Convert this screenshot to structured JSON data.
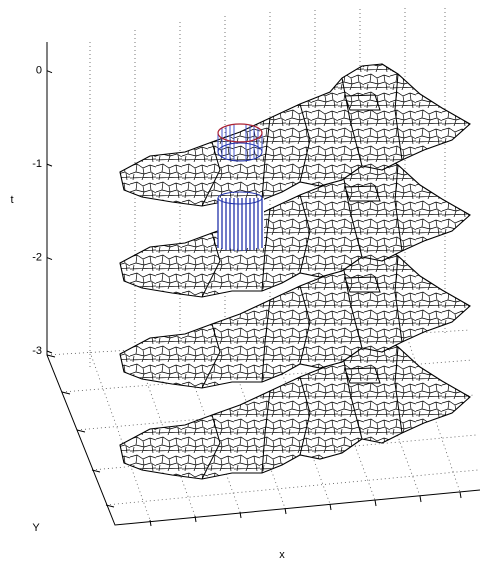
{
  "chart_data": {
    "type": "map-stack",
    "zlabel": "t",
    "xlabel": "x",
    "ylabel": "Y",
    "zlim": [
      -3,
      0.35
    ],
    "zticks": [
      0,
      -1,
      -2,
      -3
    ]
  }
}
